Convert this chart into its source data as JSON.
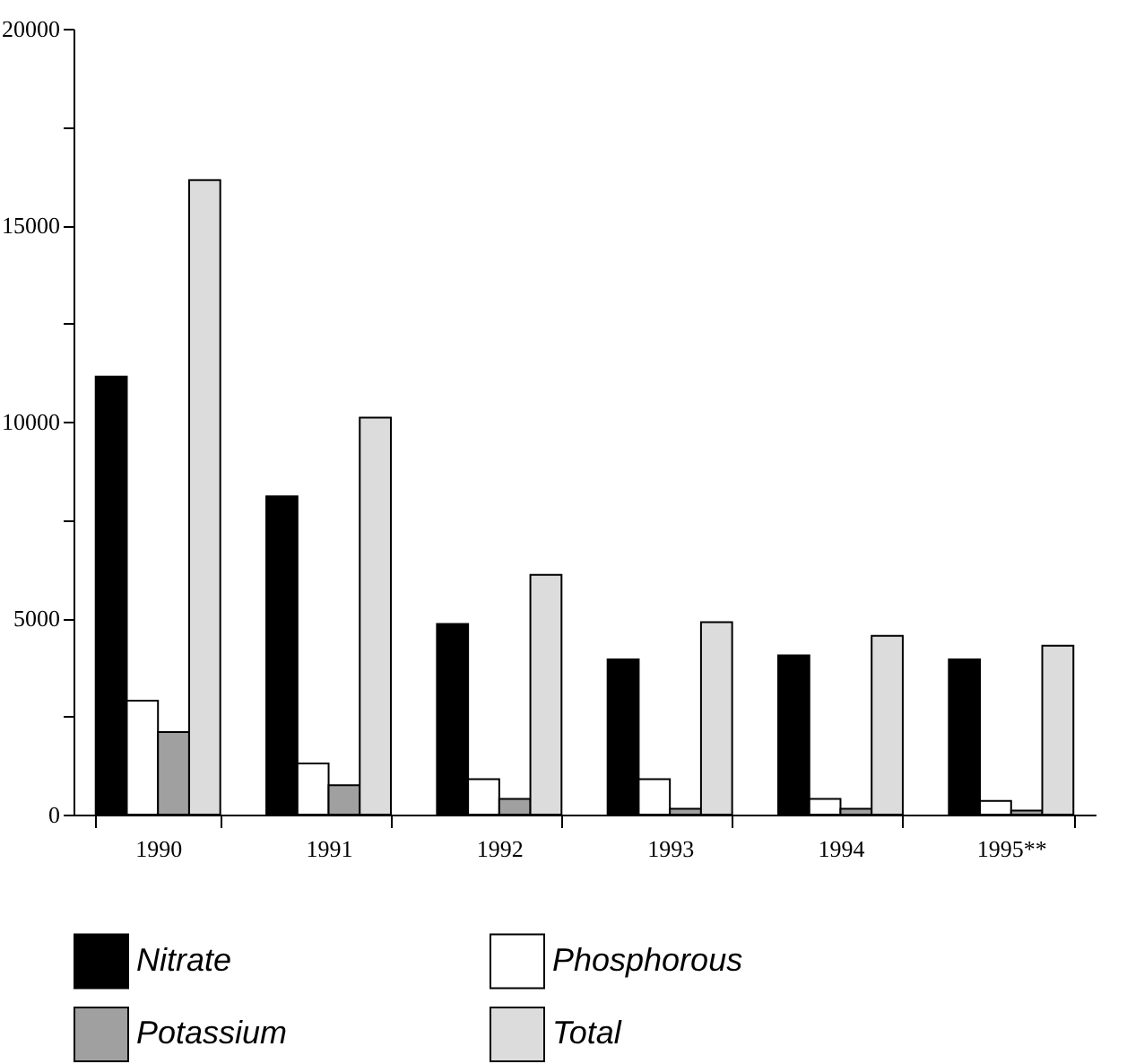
{
  "chart_data": {
    "type": "bar",
    "categories": [
      "1990",
      "1991",
      "1992",
      "1993",
      "1994",
      "1995**"
    ],
    "series": [
      {
        "name": "Nitrate",
        "color": "#000000",
        "values": [
          11150,
          8100,
          4850,
          3950,
          4050,
          3950
        ]
      },
      {
        "name": "Phosphorous",
        "color": "#ffffff",
        "values": [
          2900,
          1300,
          900,
          900,
          400,
          350
        ]
      },
      {
        "name": "Potassium",
        "color": "#a0a0a0",
        "values": [
          2100,
          750,
          400,
          150,
          150,
          100
        ]
      },
      {
        "name": "Total",
        "color": "#dcdcdc",
        "values": [
          16150,
          10100,
          6100,
          4900,
          4550,
          4300
        ]
      }
    ],
    "ylim": [
      0,
      20000
    ],
    "yticks": [
      0,
      {
        "value": 2500,
        "label": null
      },
      5000,
      {
        "value": 7500,
        "label": null
      },
      10000,
      {
        "value": 12500,
        "label": null
      },
      15000,
      {
        "value": 17500,
        "label": null
      },
      20000
    ],
    "grid": false,
    "legend": "bottom"
  }
}
